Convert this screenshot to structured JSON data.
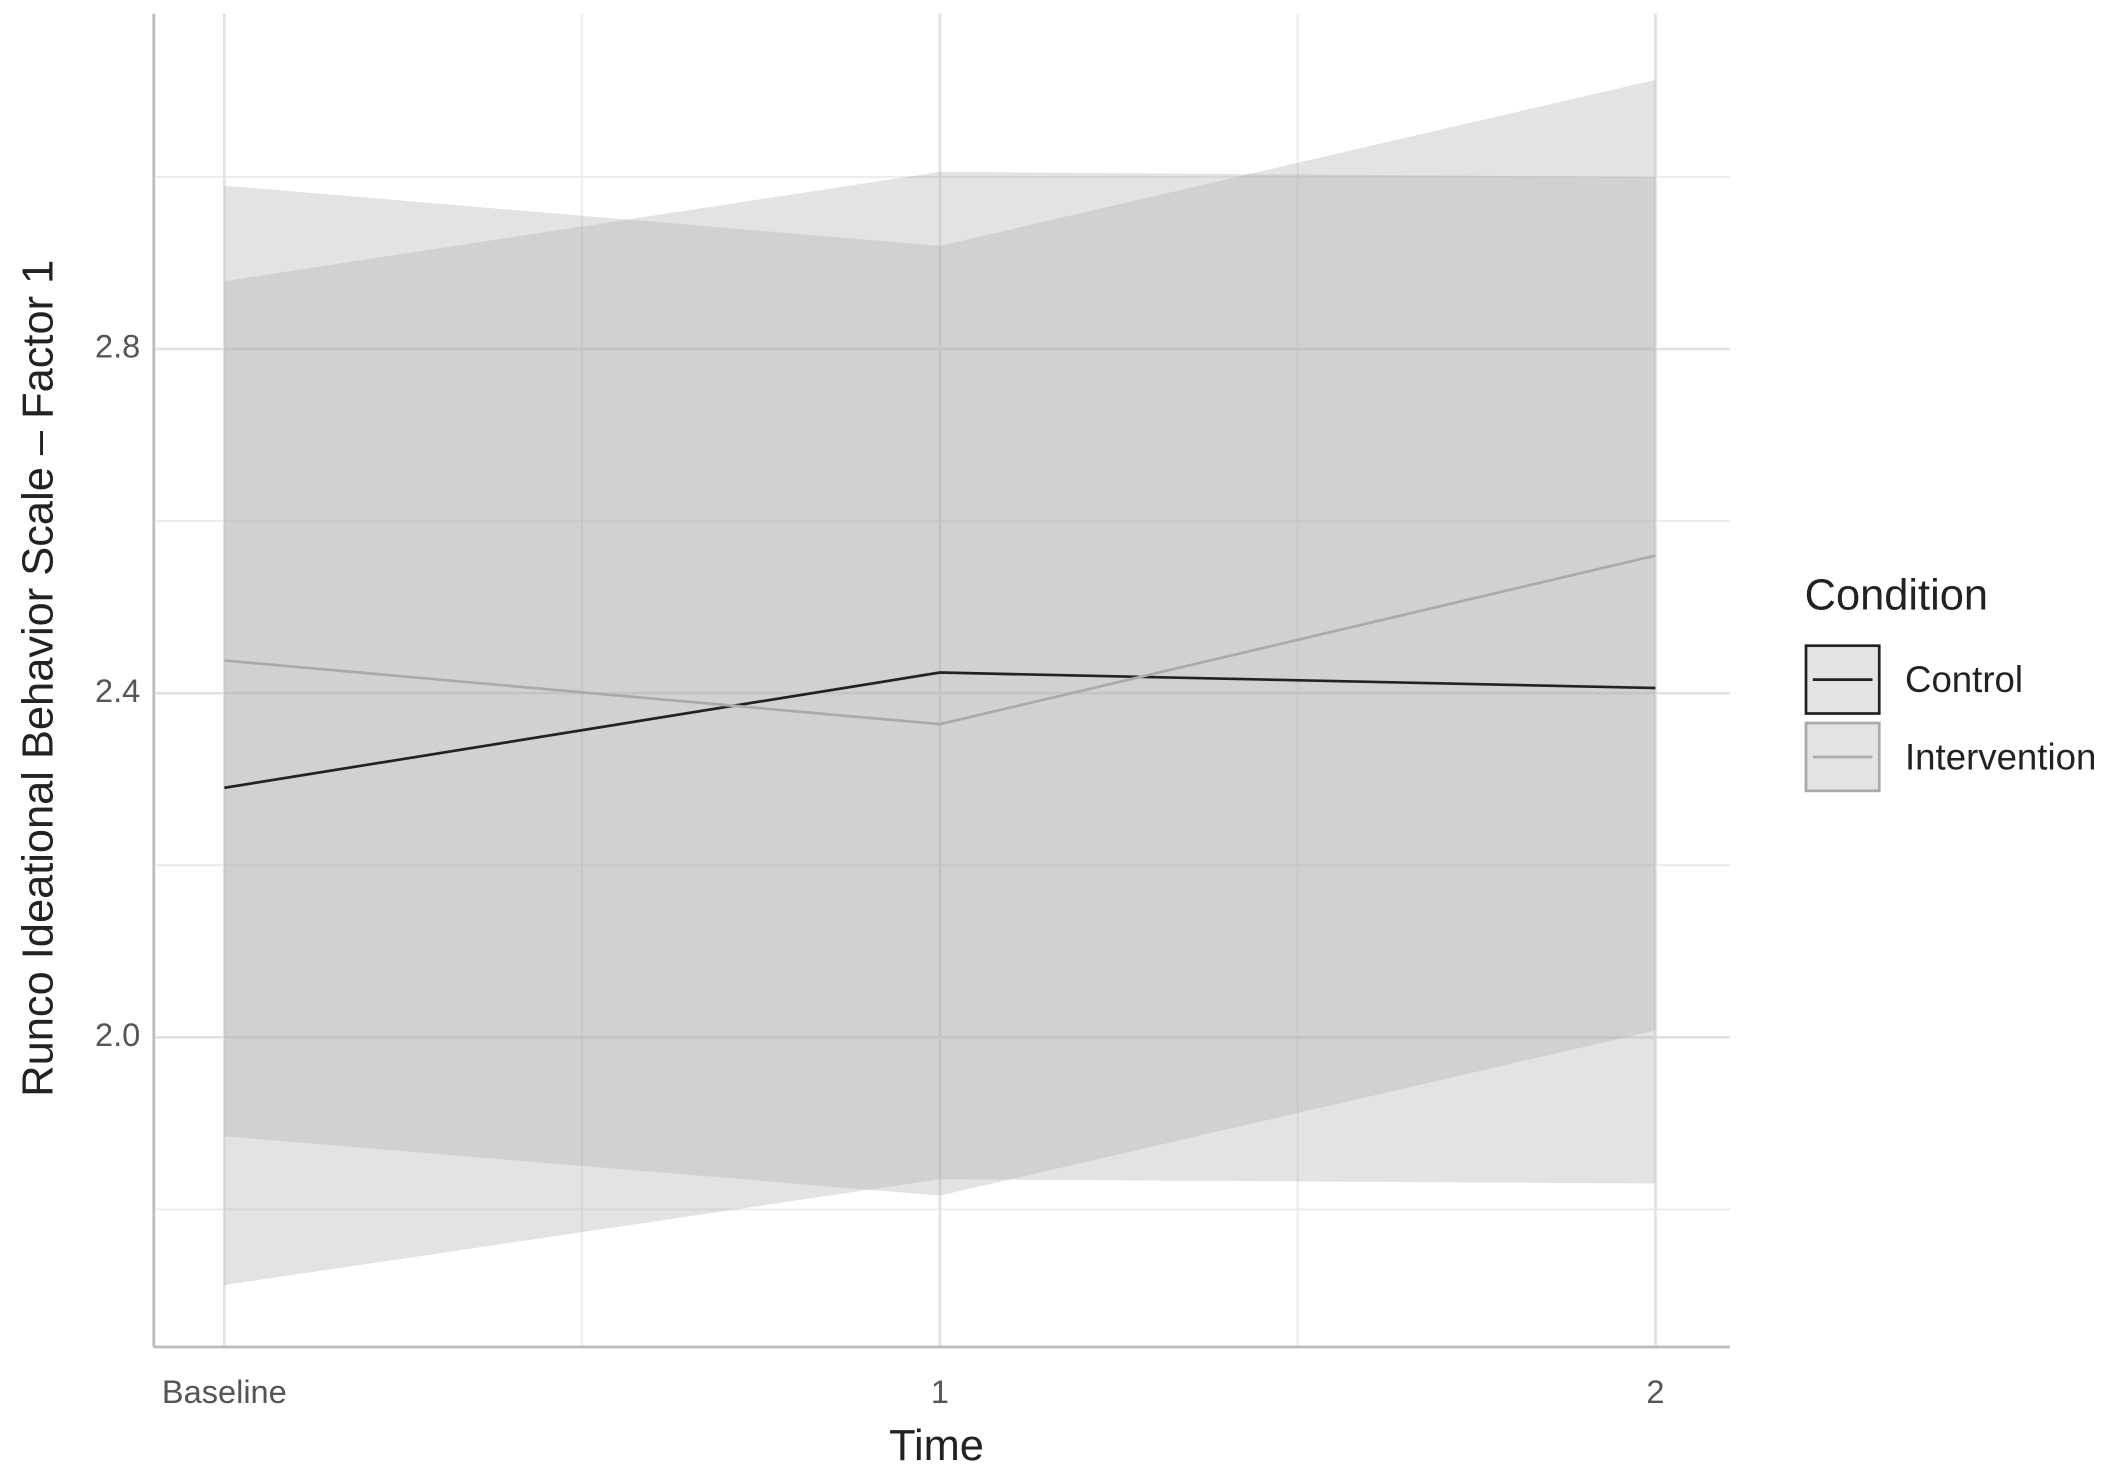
{
  "chart_data": {
    "type": "line",
    "x_label": "Time",
    "y_label": "Runco Ideational Behavior Scale – Factor 1",
    "legend_title": "Condition",
    "categories": [
      "Baseline",
      "1",
      "2"
    ],
    "ylim": [
      1.64,
      3.19
    ],
    "yticks": [
      {
        "value": 2,
        "label": "2.0"
      },
      2.4,
      2.8
    ],
    "minor_yticks": [
      1.8,
      2.2,
      2.6,
      3.0
    ],
    "grid": true,
    "ribbon_color": "#b0b0b0",
    "series": [
      {
        "name": "Control",
        "color": "#222222",
        "values": [
          2.29,
          2.424,
          2.406
        ],
        "lower": [
          1.712,
          1.835,
          1.83
        ],
        "upper": [
          2.879,
          3.006,
          3.0
        ]
      },
      {
        "name": "Intervention",
        "color": "#aaaaaa",
        "values": [
          2.438,
          2.364,
          2.56
        ],
        "lower": [
          1.885,
          1.816,
          2.008
        ],
        "upper": [
          2.99,
          2.92,
          3.113
        ]
      }
    ]
  }
}
